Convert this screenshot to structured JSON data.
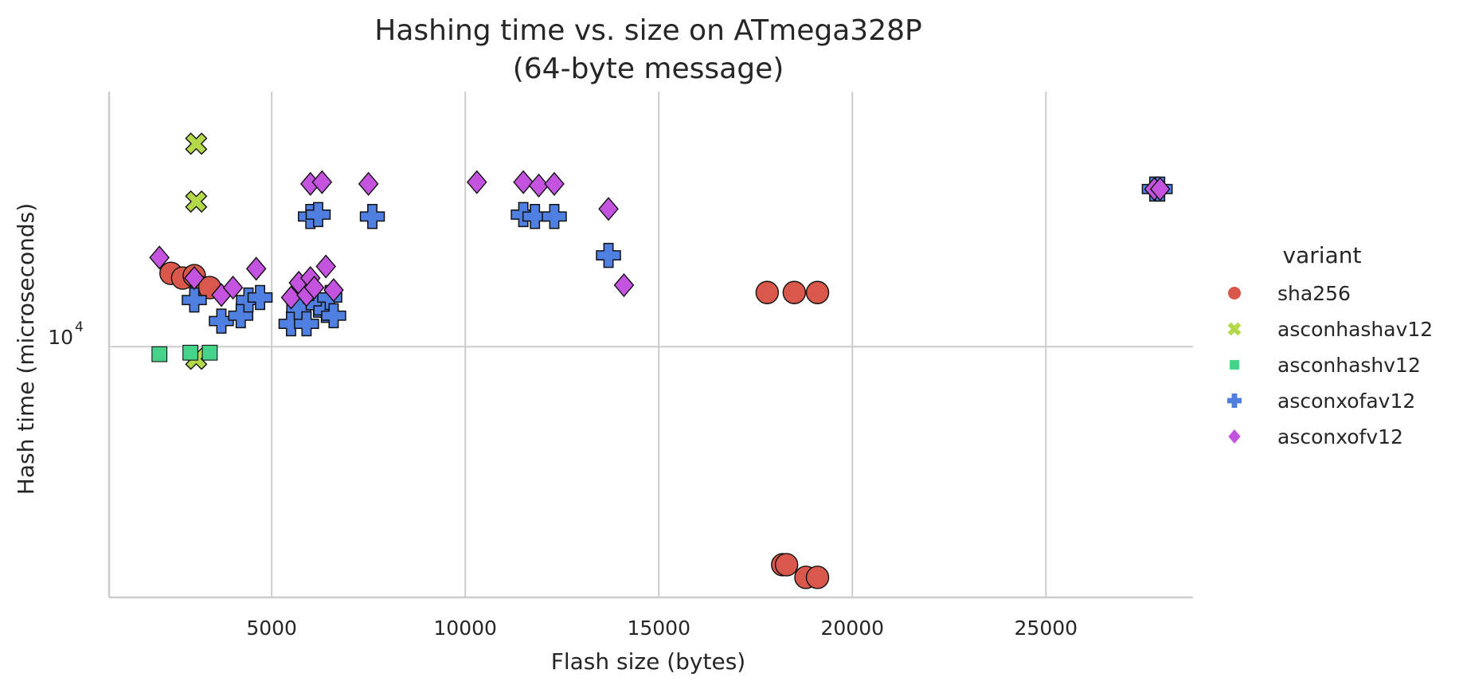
{
  "chart_data": {
    "type": "scatter",
    "title_line1": "Hashing time vs. size on ATmega328P",
    "title_line2": "(64-byte message)",
    "xlabel": "Flash size (bytes)",
    "ylabel": "Hash time (microseconds)",
    "xlim": [
      800,
      28800
    ],
    "ylim": [
      4300,
      23600
    ],
    "yscale": "log",
    "grid": true,
    "xticks": [
      5000,
      10000,
      15000,
      20000,
      25000
    ],
    "xtick_labels": [
      "5000",
      "10000",
      "15000",
      "20000",
      "25000"
    ],
    "yticks": [
      10000
    ],
    "ytick_labels": [
      "10",
      "4"
    ],
    "legend": {
      "title": "variant",
      "placement": "outside-right"
    },
    "series": [
      {
        "name": "sha256",
        "marker": "circle",
        "color": "#d9584b",
        "points": [
          [
            2400,
            12800
          ],
          [
            2700,
            12600
          ],
          [
            3000,
            12700
          ],
          [
            3200,
            12200
          ],
          [
            3400,
            12200
          ],
          [
            17800,
            12000
          ],
          [
            18500,
            12000
          ],
          [
            19100,
            12000
          ],
          [
            18200,
            4800
          ],
          [
            18300,
            4800
          ],
          [
            18800,
            4600
          ],
          [
            19100,
            4600
          ]
        ]
      },
      {
        "name": "asconhashav12",
        "marker": "x",
        "color": "#b3d94a",
        "points": [
          [
            3050,
            19800
          ],
          [
            3050,
            16300
          ],
          [
            3050,
            9600
          ]
        ]
      },
      {
        "name": "asconhashv12",
        "marker": "square",
        "color": "#45d389",
        "points": [
          [
            2100,
            9750
          ],
          [
            2900,
            9800
          ],
          [
            3400,
            9800
          ]
        ]
      },
      {
        "name": "asconxofav12",
        "marker": "plus",
        "color": "#4f7fe0",
        "points": [
          [
            3000,
            11700
          ],
          [
            3700,
            10900
          ],
          [
            4200,
            11100
          ],
          [
            4400,
            11700
          ],
          [
            4700,
            11800
          ],
          [
            5500,
            10800
          ],
          [
            5700,
            11400
          ],
          [
            5900,
            10800
          ],
          [
            6200,
            11500
          ],
          [
            6400,
            11300
          ],
          [
            6500,
            11800
          ],
          [
            6600,
            11100
          ],
          [
            6000,
            15500
          ],
          [
            6200,
            15600
          ],
          [
            7600,
            15500
          ],
          [
            11500,
            15600
          ],
          [
            11800,
            15500
          ],
          [
            12300,
            15500
          ],
          [
            13700,
            13600
          ],
          [
            27800,
            17000
          ],
          [
            27950,
            17000
          ]
        ]
      },
      {
        "name": "asconxofv12",
        "marker": "diamond",
        "color": "#c454e0",
        "points": [
          [
            2100,
            13500
          ],
          [
            3000,
            12600
          ],
          [
            3700,
            11900
          ],
          [
            4000,
            12200
          ],
          [
            4600,
            13000
          ],
          [
            5500,
            11800
          ],
          [
            5700,
            12400
          ],
          [
            5900,
            11900
          ],
          [
            6000,
            12600
          ],
          [
            6100,
            12200
          ],
          [
            6400,
            13100
          ],
          [
            6600,
            12100
          ],
          [
            6000,
            17300
          ],
          [
            6300,
            17400
          ],
          [
            7500,
            17300
          ],
          [
            10300,
            17400
          ],
          [
            11500,
            17400
          ],
          [
            11900,
            17200
          ],
          [
            12300,
            17300
          ],
          [
            13700,
            15900
          ],
          [
            14100,
            12300
          ],
          [
            27800,
            17000
          ],
          [
            27950,
            17000
          ]
        ]
      }
    ]
  }
}
